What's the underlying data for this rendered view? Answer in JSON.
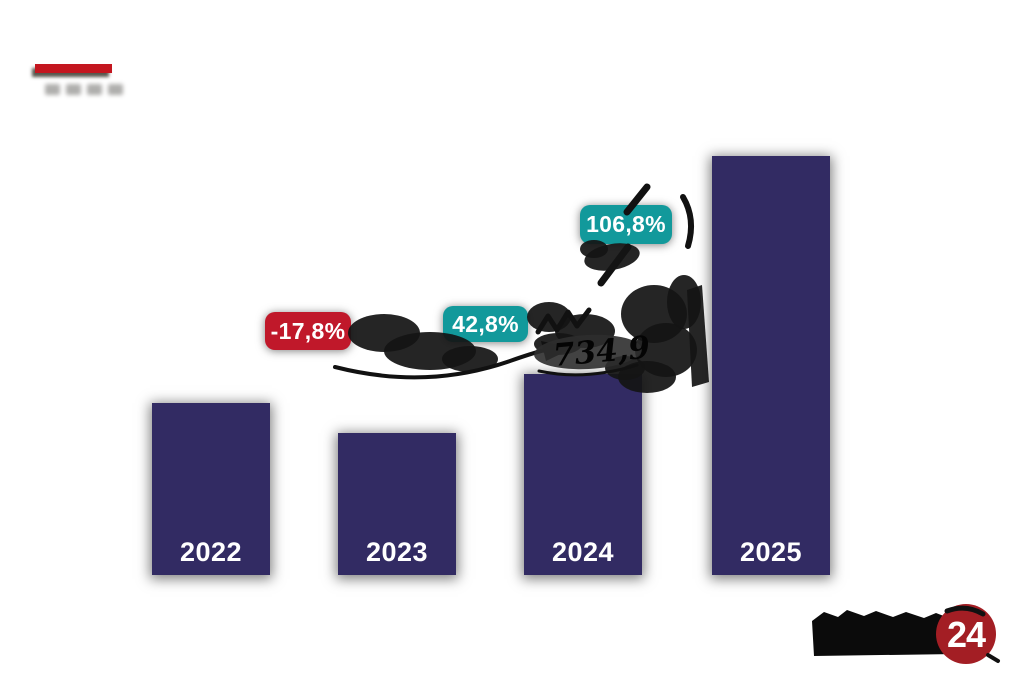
{
  "canvas": {
    "background": "#ffffff",
    "accent_color": "#c4161f"
  },
  "chart_data": {
    "type": "bar",
    "categories": [
      "2022",
      "2023",
      "2024",
      "2025"
    ],
    "values": [
      172,
      142,
      201,
      419
    ],
    "values_note": "relative bar heights in pixels; absolute value labels are redacted by black marker scribbles",
    "bar_color": "#322b63",
    "category_label_color": "#ffffff",
    "growth_badges": [
      {
        "label": "-17,8%",
        "color": "#c0182a",
        "between": [
          "2022",
          "2023"
        ]
      },
      {
        "label": "42,8%",
        "color": "#12999b",
        "between": [
          "2023",
          "2024"
        ]
      },
      {
        "label": "106,8%",
        "color": "#12999b",
        "between": [
          "2024",
          "2025"
        ]
      }
    ],
    "legend": "none",
    "axes": "none"
  },
  "annotations": {
    "handwritten_value": "734,9",
    "redactions": "black marker scribbles cover the chart title, the bar value labels and the logo wordmark"
  },
  "logo": {
    "badge_text": "24",
    "disc_color": "#a31e24",
    "wordmark": "redacted (blacked out)"
  }
}
